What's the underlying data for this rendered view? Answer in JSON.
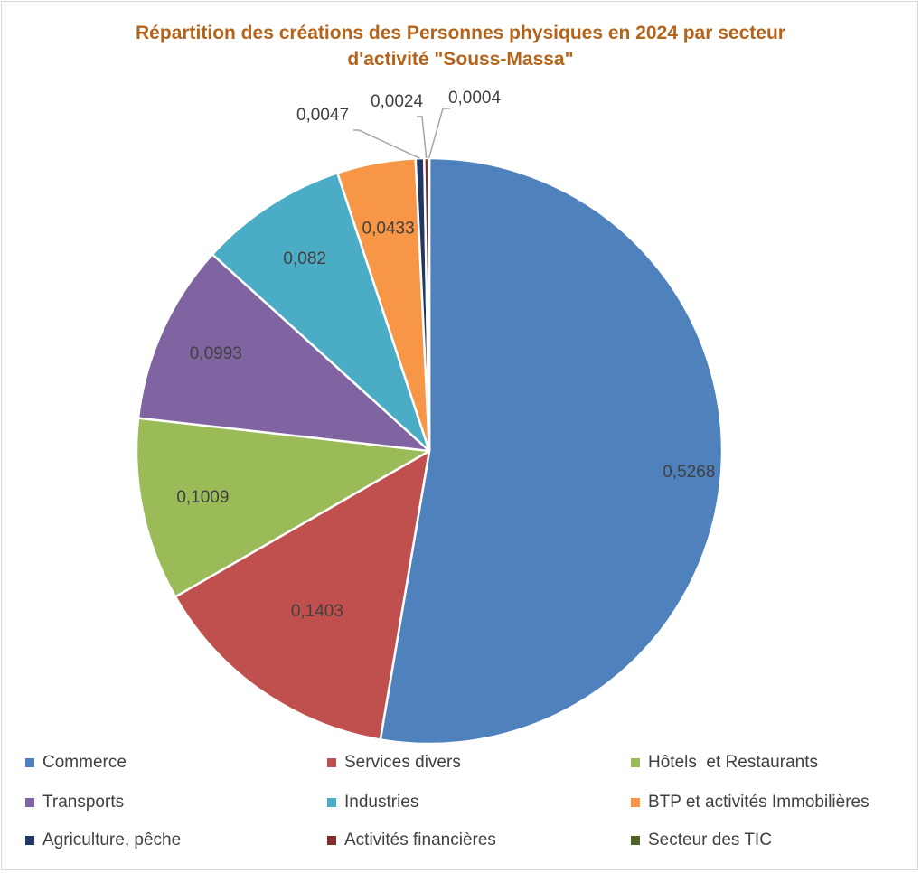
{
  "chart_data": {
    "type": "pie",
    "title": "Répartition des créations des Personnes physiques en 2024 par secteur d'activité \"Souss-Massa\"",
    "title_lines": [
      "Répartition des créations des Personnes physiques en 2024 par secteur",
      "d'activité \"Souss-Massa\""
    ],
    "legend_position": "bottom",
    "slices": [
      {
        "name": "Commerce",
        "value": 0.5268,
        "label": "0,5268",
        "color": "#4f81bd"
      },
      {
        "name": "Services divers",
        "value": 0.1403,
        "label": "0,1403",
        "color": "#c0504d"
      },
      {
        "name": "Hôtels  et Restaurants",
        "value": 0.1009,
        "label": "0,1009",
        "color": "#9bbb59"
      },
      {
        "name": "Transports",
        "value": 0.0993,
        "label": "0,0993",
        "color": "#8064a2"
      },
      {
        "name": "Industries",
        "value": 0.082,
        "label": "0,082",
        "color": "#4bacc6"
      },
      {
        "name": "BTP et activités Immobilières",
        "value": 0.0433,
        "label": "0,0433",
        "color": "#f79646"
      },
      {
        "name": "Agriculture, pêche",
        "value": 0.0047,
        "label": "0,0047",
        "color": "#1f3864"
      },
      {
        "name": "Activités financières",
        "value": 0.0024,
        "label": "0,0024",
        "color": "#7f2b2b"
      },
      {
        "name": "Secteur des TIC",
        "value": 0.0004,
        "label": "0,0004",
        "color": "#4f6228"
      }
    ]
  }
}
